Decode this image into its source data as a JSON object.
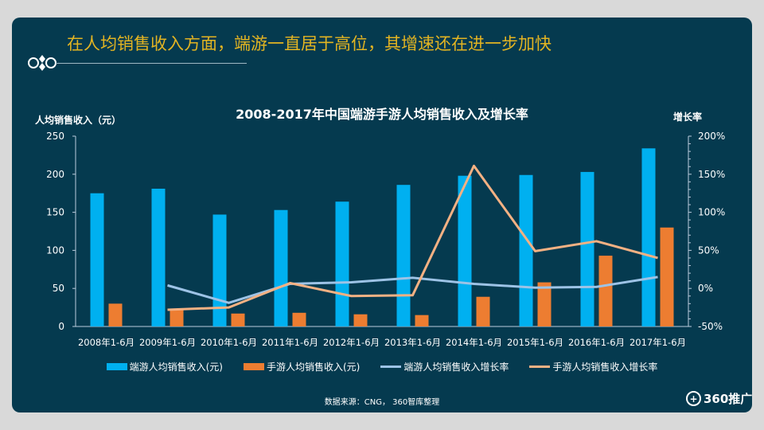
{
  "headline": "在人均销售收入方面，端游一直居于高位，其增速还在进一步加快",
  "source": "数据来源：CNG， 360智库整理",
  "logo": {
    "text": "360推广",
    "icon": "plus-circle-icon"
  },
  "colors": {
    "background": "#053a4f",
    "accent": "#e3b422",
    "pc_bar": "#00b0f0",
    "mobile_bar": "#ed7d31",
    "pc_line": "#9dc3e6",
    "mobile_line": "#f4b183"
  },
  "chart_data": {
    "type": "bar",
    "title": "2008-2017年中国端游手游人均销售收入及增长率",
    "ylabel": "人均销售收入（元）",
    "y2label": "增长率",
    "ylim": [
      0,
      250
    ],
    "yticks": [
      "0",
      "50",
      "100",
      "150",
      "200",
      "250"
    ],
    "y2lim": [
      -50,
      200
    ],
    "y2ticks": [
      "-50%",
      "0%",
      "50%",
      "100%",
      "150%",
      "200%"
    ],
    "categories": [
      "2008年1-6月",
      "2009年1-6月",
      "2010年1-6月",
      "2011年1-6月",
      "2012年1-6月",
      "2013年1-6月",
      "2014年1-6月",
      "2015年1-6月",
      "2016年1-6月",
      "2017年1-6月"
    ],
    "legend_position": "bottom",
    "grid": false,
    "series": [
      {
        "name": "端游人均销售收入(元)",
        "type": "bar",
        "axis": "left",
        "values": [
          175,
          181,
          147,
          153,
          164,
          186,
          198,
          199,
          203,
          234
        ]
      },
      {
        "name": "手游人均销售收入(元)",
        "type": "bar",
        "axis": "left",
        "values": [
          30,
          22,
          17,
          18,
          16,
          15,
          39,
          58,
          93,
          130
        ]
      },
      {
        "name": "端游人均销售收入增长率",
        "type": "line",
        "axis": "right",
        "values": [
          null,
          4,
          -19,
          6,
          8,
          14,
          6,
          1,
          2,
          15
        ]
      },
      {
        "name": "手游人均销售收入增长率",
        "type": "line",
        "axis": "right",
        "values": [
          null,
          -28,
          -25,
          7,
          -10,
          -9,
          161,
          49,
          62,
          40
        ]
      }
    ]
  }
}
